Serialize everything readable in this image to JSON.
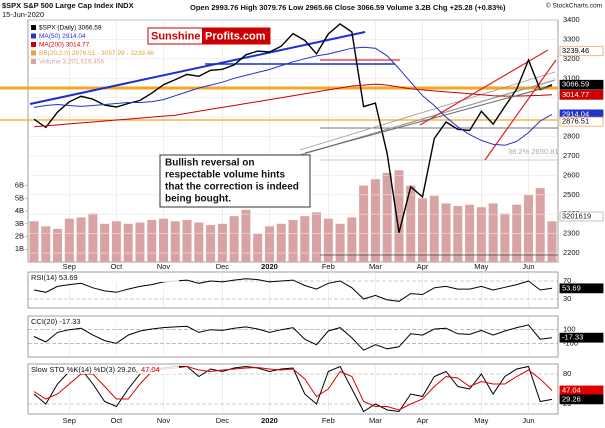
{
  "header": {
    "symbol": "$SPX S&P 500 Large Cap Index INDX",
    "date": "15-Jun-2020",
    "quote": "Open 2993.76 High 3079.76 Low 2965.66 Close 3066.59 Volume 3.2B Chg +25.28 (+0.83%)",
    "source": "© StockCharts.com"
  },
  "logo": {
    "part1": "Sunshine",
    "part2": "Profits.com"
  },
  "annotation": {
    "lines": [
      "Bullish reversal on",
      "respectable volume hints",
      "that the correction is indeed",
      "being bought."
    ]
  },
  "chart_data": [
    {
      "type": "line",
      "categories": [
        null,
        null,
        null,
        "Sep",
        null,
        null,
        null,
        "Oct",
        null,
        null,
        null,
        "Nov",
        null,
        null,
        null,
        null,
        "Dec",
        null,
        null,
        null,
        "2020",
        null,
        null,
        null,
        null,
        "Feb",
        null,
        null,
        null,
        "Mar",
        null,
        null,
        null,
        "Apr",
        null,
        null,
        null,
        null,
        "May",
        null,
        null,
        null,
        "Jun",
        null,
        null
      ],
      "ylim": [
        2154,
        3400
      ],
      "yticks": [
        2200,
        2300,
        2400,
        2500,
        2600,
        2700,
        2800,
        2900,
        3000,
        3100,
        3200,
        3300,
        3400
      ],
      "grid": true,
      "series": [
        {
          "name": "$SPX (Daily) 3066.59",
          "color": "#000000",
          "values": [
            2889,
            2847,
            2926,
            2979,
            3007,
            2992,
            2962,
            2952,
            2970,
            2986,
            3023,
            3067,
            3093,
            3120,
            3110,
            3141,
            3146,
            3169,
            3221,
            3240,
            3235,
            3265,
            3330,
            3295,
            3226,
            3328,
            3380,
            3338,
            2954,
            2972,
            2711,
            2305,
            2541,
            2489,
            2790,
            2875,
            2837,
            2831,
            2930,
            2864,
            2955,
            3044,
            3194,
            3041,
            3067
          ]
        },
        {
          "name": "MA(50) 2914.04",
          "color": "#2233cc",
          "values": [
            2950,
            2960,
            2965,
            2960,
            2955,
            2960,
            2965,
            2970,
            2975,
            2975,
            2980,
            2990,
            3010,
            3030,
            3050,
            3065,
            3080,
            3100,
            3115,
            3130,
            3145,
            3165,
            3185,
            3200,
            3215,
            3225,
            3240,
            3255,
            3260,
            3255,
            3215,
            3150,
            3080,
            3010,
            2960,
            2900,
            2850,
            2810,
            2780,
            2760,
            2755,
            2775,
            2820,
            2880,
            2914.04
          ]
        },
        {
          "name": "MA(200) 3014.77",
          "color": "#cc0000",
          "values": [
            2850,
            2855,
            2860,
            2865,
            2870,
            2875,
            2880,
            2885,
            2890,
            2895,
            2900,
            2905,
            2910,
            2920,
            2930,
            2940,
            2950,
            2960,
            2970,
            2980,
            2990,
            3000,
            3010,
            3020,
            3030,
            3040,
            3050,
            3060,
            3065,
            3070,
            3065,
            3055,
            3045,
            3040,
            3035,
            3030,
            3025,
            3020,
            3015,
            3010,
            3008,
            3008,
            3010,
            3012,
            3014.77
          ]
        }
      ],
      "bb": {
        "name": "BB(20,2.0) 2876.51 - 3057.99 - 3239.46",
        "color": "#e8a040"
      },
      "volume": {
        "name": "Volume 3,201,619,456",
        "color": "#d9a3a3",
        "values": [
          3.2,
          2.8,
          2.6,
          3.4,
          3.5,
          3.8,
          3.0,
          3.2,
          3.0,
          3.1,
          3.3,
          3.4,
          3.2,
          3.3,
          3.1,
          2.9,
          3.0,
          3.6,
          4.1,
          2.2,
          2.8,
          3.0,
          3.3,
          3.6,
          3.9,
          3.4,
          3.0,
          3.5,
          6.0,
          6.5,
          7.0,
          7.2,
          6.0,
          5.0,
          5.2,
          4.6,
          4.4,
          4.5,
          4.3,
          4.6,
          3.8,
          4.5,
          5.3,
          5.8,
          3.2
        ],
        "ylim": [
          0,
          19
        ],
        "yticks": [
          {
            "value": 1,
            "label": "1B"
          },
          {
            "value": 2,
            "label": "2B"
          },
          {
            "value": 3,
            "label": "3B"
          },
          {
            "value": 4,
            "label": "4B"
          },
          {
            "value": 5,
            "label": "5B"
          },
          {
            "value": 6,
            "label": "6B"
          }
        ],
        "tag": "3201619"
      },
      "tags": [
        {
          "value": 3239.46,
          "color": "#f4a460"
        },
        {
          "value": 3066.59,
          "color": "#000000"
        },
        {
          "value": 3014.77,
          "color": "#cc0000"
        },
        {
          "value": 2914.04,
          "color": "#2233cc"
        },
        {
          "value": 2876.51,
          "color": "#f4a460"
        }
      ],
      "fib_label": "38.2% 2650.81"
    },
    {
      "type": "line",
      "title": "RSI(14) 53.69",
      "ylim": [
        10,
        90
      ],
      "yticks": [
        30,
        70
      ],
      "series": [
        {
          "color": "#000000",
          "values": [
            50,
            45,
            58,
            62,
            65,
            55,
            48,
            45,
            52,
            58,
            62,
            68,
            70,
            72,
            65,
            70,
            68,
            72,
            75,
            73,
            68,
            70,
            72,
            60,
            52,
            65,
            70,
            55,
            30,
            38,
            28,
            25,
            42,
            40,
            55,
            58,
            52,
            52,
            58,
            50,
            56,
            62,
            70,
            50,
            53.69
          ]
        }
      ],
      "tags": [
        {
          "value": 53.69,
          "color": "#000000"
        }
      ]
    },
    {
      "type": "line",
      "title": "CCI(20) -17.33",
      "ylim": [
        -300,
        300
      ],
      "yticks": [
        -100,
        100
      ],
      "series": [
        {
          "color": "#000000",
          "values": [
            0,
            -80,
            60,
            100,
            120,
            20,
            -60,
            -100,
            20,
            80,
            110,
            130,
            140,
            150,
            60,
            100,
            90,
            120,
            140,
            110,
            60,
            100,
            130,
            -40,
            -120,
            80,
            130,
            -20,
            -200,
            -120,
            -180,
            -150,
            40,
            20,
            110,
            120,
            40,
            30,
            90,
            20,
            80,
            130,
            170,
            -40,
            -17.33
          ]
        }
      ],
      "tags": [
        {
          "value": -17.33,
          "color": "#000000"
        }
      ]
    },
    {
      "type": "line",
      "title": "Slow STO %K(14) %D(3) 29.26,",
      "title_extra": "47.04",
      "ylim": [
        0,
        100
      ],
      "yticks": [
        20,
        80
      ],
      "series": [
        {
          "color": "#000000",
          "values": [
            40,
            20,
            60,
            85,
            90,
            60,
            25,
            15,
            50,
            80,
            90,
            92,
            95,
            95,
            75,
            90,
            85,
            92,
            95,
            92,
            85,
            90,
            92,
            40,
            20,
            85,
            95,
            50,
            5,
            20,
            8,
            5,
            40,
            35,
            75,
            85,
            55,
            50,
            80,
            40,
            75,
            90,
            95,
            25,
            29.26
          ]
        },
        {
          "color": "#dd0000",
          "values": [
            45,
            30,
            40,
            60,
            80,
            80,
            55,
            30,
            30,
            60,
            85,
            90,
            92,
            95,
            88,
            85,
            88,
            90,
            92,
            93,
            90,
            88,
            90,
            70,
            35,
            50,
            85,
            75,
            25,
            15,
            15,
            8,
            20,
            30,
            55,
            75,
            72,
            55,
            65,
            60,
            60,
            75,
            88,
            70,
            47.04
          ]
        }
      ],
      "tags": [
        {
          "value": 47.04,
          "color": "#dd0000"
        },
        {
          "value": 29.26,
          "color": "#000000"
        }
      ]
    }
  ]
}
